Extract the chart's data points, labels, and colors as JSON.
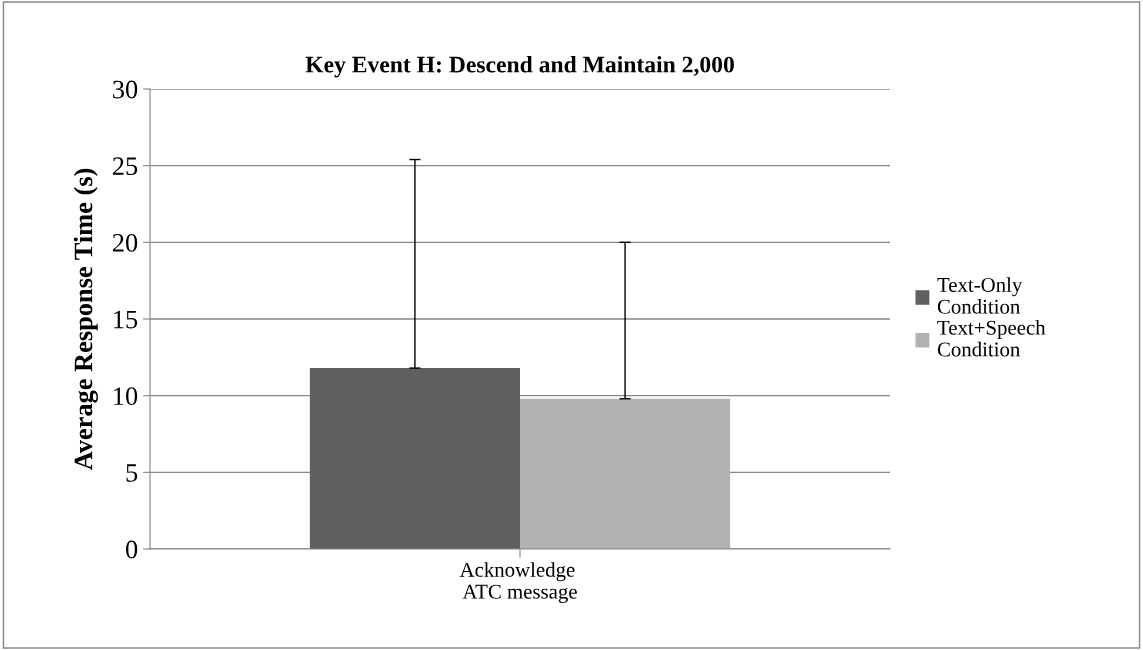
{
  "chart_data": {
    "type": "bar",
    "title": "Key Event H: Descend and Maintain 2,000",
    "ylabel": "Average Response Time (s)",
    "categories": [
      "Acknowledge ATC message"
    ],
    "series": [
      {
        "name": "Text-Only Condition",
        "color": "#606060",
        "values": [
          11.8
        ],
        "errors": [
          [
            11.8,
            25.4
          ]
        ]
      },
      {
        "name": "Text+Speech Condition",
        "color": "#b2b2b2",
        "values": [
          9.8
        ],
        "errors": [
          [
            9.8,
            20.0
          ]
        ]
      }
    ],
    "ylim": [
      0,
      30
    ],
    "yticks": [
      0,
      5,
      10,
      15,
      20,
      25,
      30
    ],
    "grid": "y",
    "legend": "right"
  }
}
